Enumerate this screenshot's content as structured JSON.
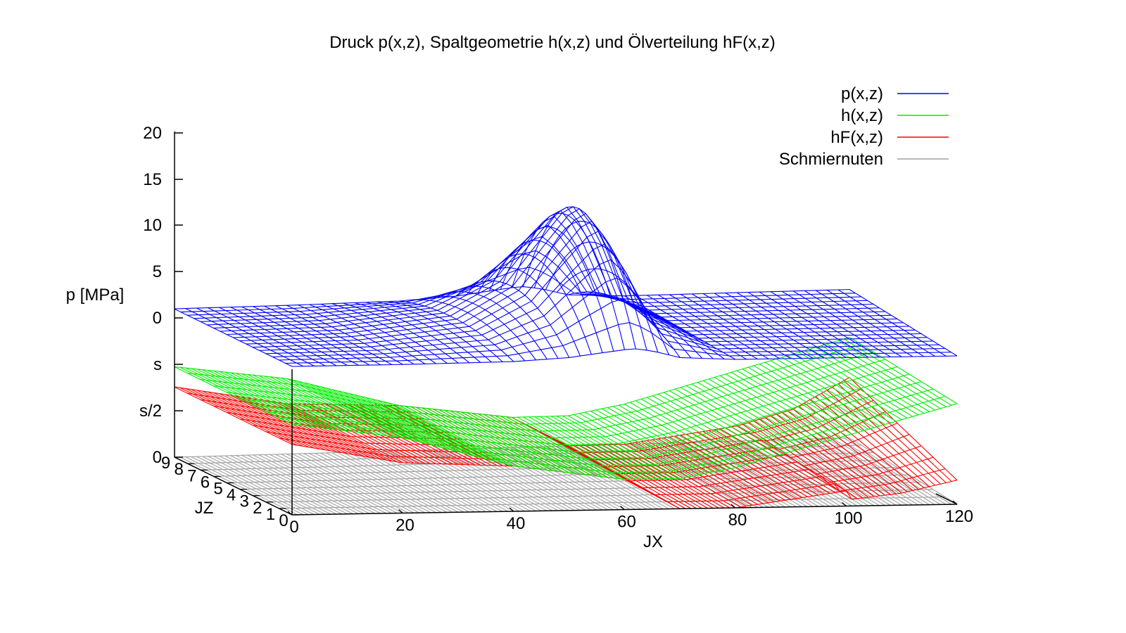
{
  "chart_data": {
    "type": "surface3d",
    "title": "Druck p(x,z), Spaltgeometrie h(x,z) und Ölverteilung hF(x,z)",
    "xlabel": "JX",
    "zlabel": "JZ",
    "ylabel": "p [MPa]",
    "x_range": [
      0,
      120
    ],
    "z_range": [
      0,
      9
    ],
    "x_ticks": [
      "0",
      "20",
      "40",
      "60",
      "80",
      "100",
      "120"
    ],
    "z_ticks": [
      "0",
      "1",
      "2",
      "3",
      "4",
      "5",
      "6",
      "7",
      "8",
      "9"
    ],
    "vertical_ticks": [
      "0",
      "s/2",
      "s",
      "0",
      "5",
      "10",
      "15",
      "20"
    ],
    "grid": false,
    "legend_position": "top-right",
    "series": [
      {
        "name": "p(x,z)",
        "color": "#0000ff",
        "peak_value": 13.5,
        "peak_x": 62,
        "base_value": 0,
        "samples_x": [
          0,
          20,
          40,
          50,
          55,
          60,
          62,
          65,
          70,
          80,
          100,
          120
        ],
        "samples_p_center": [
          0,
          0.2,
          1.5,
          5.0,
          9.0,
          12.8,
          13.5,
          11.0,
          3.0,
          0,
          0,
          0
        ]
      },
      {
        "name": "h(x,z)",
        "color": "#00ee00",
        "samples_x": [
          0,
          20,
          40,
          60,
          70,
          80,
          100,
          120
        ],
        "samples_h_over_s": [
          0.9,
          0.75,
          0.45,
          0.3,
          0.3,
          0.4,
          0.7,
          1.0
        ]
      },
      {
        "name": "hF(x,z)",
        "color": "#ff0000",
        "samples_x": [
          0,
          20,
          40,
          60,
          70,
          80,
          100,
          110,
          120
        ],
        "samples_hF_over_s": [
          0.7,
          0.5,
          0.45,
          0.3,
          0.0,
          0.0,
          0.15,
          0.3,
          0.6
        ]
      },
      {
        "name": "Schmiernuten",
        "color": "#a0a0a0",
        "value": 0
      }
    ]
  }
}
